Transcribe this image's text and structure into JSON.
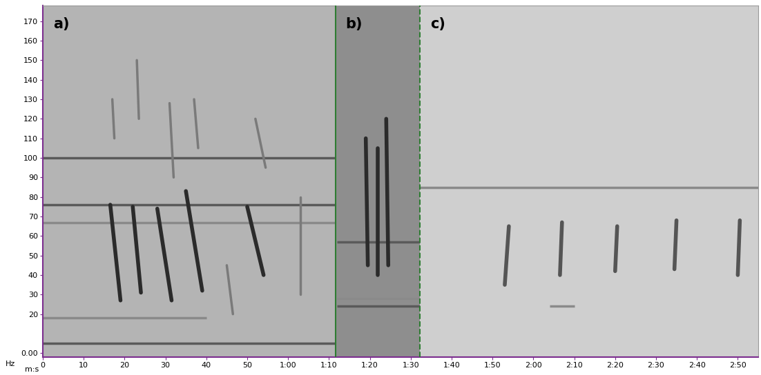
{
  "chart_data": {
    "type": "spectrogram",
    "x_label": "m:s",
    "y_label": "Hz",
    "xlim": [
      0,
      175
    ],
    "ylim": [
      -2,
      178
    ],
    "xticks": [
      0,
      10,
      20,
      30,
      40,
      50,
      {
        "value": 60,
        "label": "1:00"
      },
      {
        "value": 70,
        "label": "1:10"
      },
      {
        "value": 80,
        "label": "1:20"
      },
      {
        "value": 90,
        "label": "1:30"
      },
      {
        "value": 100,
        "label": "1:40"
      },
      {
        "value": 110,
        "label": "1:50"
      },
      {
        "value": 120,
        "label": "2:00"
      },
      {
        "value": 130,
        "label": "2:10"
      },
      {
        "value": 140,
        "label": "2:20"
      },
      {
        "value": 150,
        "label": "2:30"
      },
      {
        "value": 160,
        "label": "2:40"
      },
      {
        "value": 170,
        "label": "2:50"
      }
    ],
    "yticks": [
      {
        "value": 0,
        "label": "0.00"
      },
      20,
      30,
      40,
      50,
      60,
      70,
      80,
      90,
      100,
      110,
      120,
      130,
      140,
      150,
      160,
      170
    ],
    "grid": false,
    "panels": [
      {
        "label": "a)",
        "start": 0,
        "end": 71.6,
        "color": "#b4b4b4"
      },
      {
        "label": "b)",
        "start": 71.6,
        "end": 92.3,
        "color": "#8e8e8e"
      },
      {
        "label": "c)",
        "start": 92.3,
        "end": 175,
        "color": "#cfcfcf"
      }
    ],
    "dividers": [
      {
        "x": 71.6,
        "color": "#2e7d32",
        "line_style": "solid"
      },
      {
        "x": 92.3,
        "color": "#2e7d32",
        "line_style": "dashed"
      }
    ],
    "bands": [
      {
        "color": "#5a5a5a",
        "segments": [
          {
            "x": [
              0,
              71.6
            ],
            "y": [
              100,
              100
            ]
          },
          {
            "x": [
              0,
              71.6
            ],
            "y": [
              76,
              76
            ]
          },
          {
            "x": [
              0,
              71.6
            ],
            "y": [
              5,
              5
            ]
          },
          {
            "x": [
              72,
              92.3
            ],
            "y": [
              57,
              57
            ]
          },
          {
            "x": [
              72,
              92.3
            ],
            "y": [
              24,
              24
            ]
          }
        ]
      },
      {
        "color": "#8a8a8a",
        "segments": [
          {
            "x": [
              0,
              71.6
            ],
            "y": [
              67,
              67
            ]
          },
          {
            "x": [
              0,
              40
            ],
            "y": [
              18,
              18
            ]
          },
          {
            "x": [
              72,
              92.3
            ],
            "y": [
              28,
              28
            ]
          },
          {
            "x": [
              92.3,
              175
            ],
            "y": [
              85,
              85
            ]
          },
          {
            "x": [
              124,
              130
            ],
            "y": [
              24,
              24
            ]
          }
        ]
      }
    ],
    "calls": [
      {
        "color": "#2b2b2b",
        "segments": [
          {
            "x": [
              16.5,
              19
            ],
            "y": [
              76,
              27
            ]
          },
          {
            "x": [
              22,
              24
            ],
            "y": [
              75,
              31
            ]
          },
          {
            "x": [
              28,
              31.5
            ],
            "y": [
              74,
              27
            ]
          },
          {
            "x": [
              35,
              39
            ],
            "y": [
              83,
              32
            ]
          },
          {
            "x": [
              50,
              54
            ],
            "y": [
              75,
              40
            ]
          },
          {
            "x": [
              79,
              79.5
            ],
            "y": [
              110,
              45
            ]
          },
          {
            "x": [
              82,
              82
            ],
            "y": [
              105,
              40
            ]
          },
          {
            "x": [
              84,
              84.5
            ],
            "y": [
              120,
              45
            ]
          }
        ]
      },
      {
        "color": "#555555",
        "segments": [
          {
            "x": [
              114,
              113
            ],
            "y": [
              65,
              35
            ]
          },
          {
            "x": [
              127,
              126.5
            ],
            "y": [
              67,
              40
            ]
          },
          {
            "x": [
              140.5,
              140
            ],
            "y": [
              65,
              42
            ]
          },
          {
            "x": [
              155,
              154.5
            ],
            "y": [
              68,
              43
            ]
          },
          {
            "x": [
              170.5,
              170
            ],
            "y": [
              68,
              40
            ]
          }
        ]
      },
      {
        "color": "#7a7a7a",
        "segments": [
          {
            "x": [
              17,
              17.5
            ],
            "y": [
              130,
              110
            ]
          },
          {
            "x": [
              23,
              23.5
            ],
            "y": [
              150,
              120
            ]
          },
          {
            "x": [
              31,
              32
            ],
            "y": [
              128,
              90
            ]
          },
          {
            "x": [
              37,
              38
            ],
            "y": [
              130,
              105
            ]
          },
          {
            "x": [
              52,
              54.5
            ],
            "y": [
              120,
              95
            ]
          },
          {
            "x": [
              45,
              46.5
            ],
            "y": [
              45,
              20
            ]
          },
          {
            "x": [
              63,
              63
            ],
            "y": [
              80,
              30
            ]
          }
        ]
      }
    ]
  }
}
